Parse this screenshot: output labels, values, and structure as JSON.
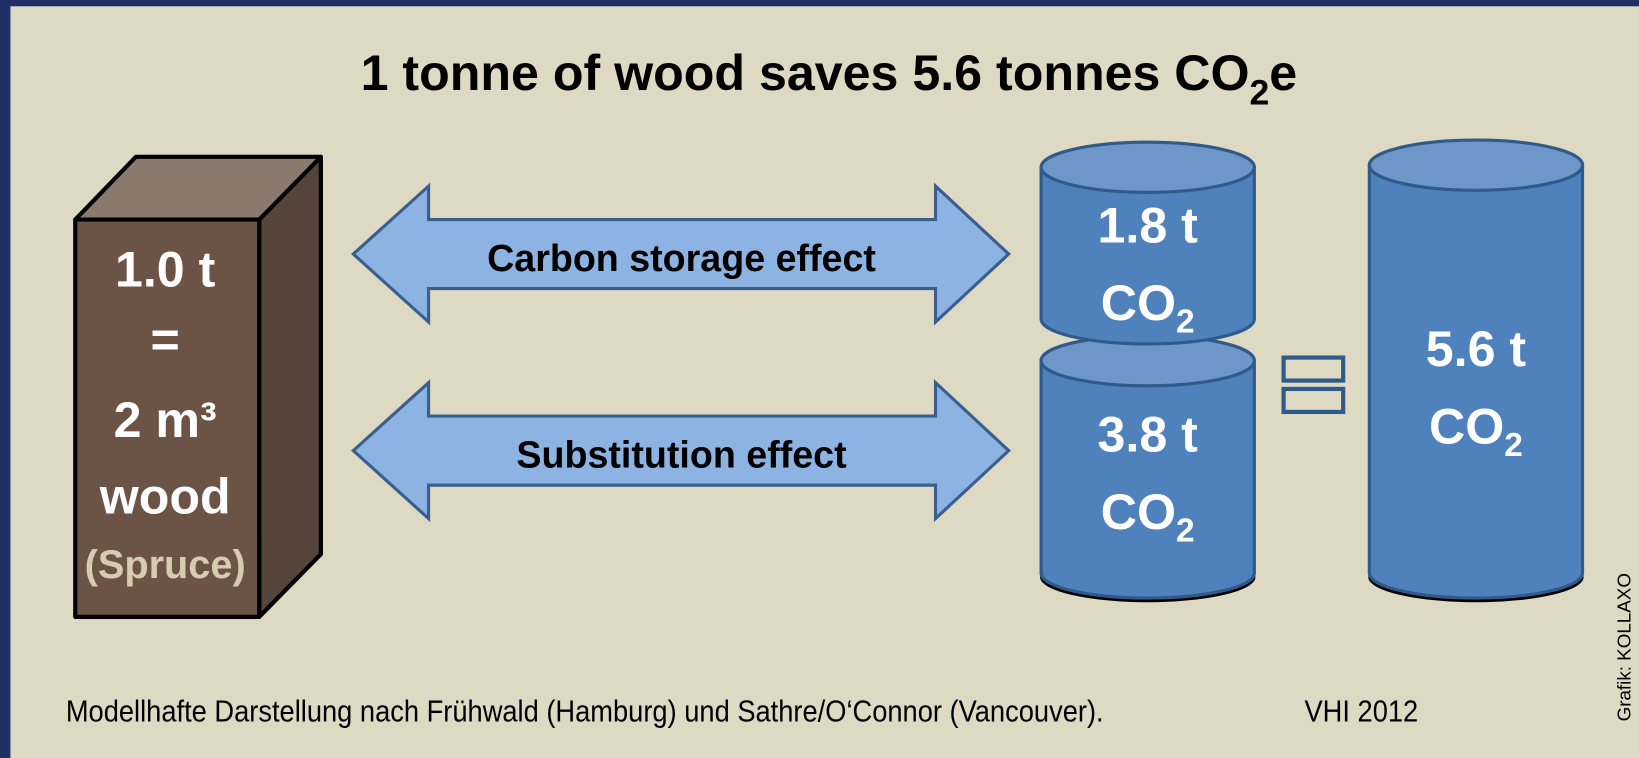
{
  "title": {
    "text": "1 tonne of wood saves 5.6 tonnes CO",
    "subscript": "2",
    "suffix": "e"
  },
  "wood_block": {
    "lines": [
      "1.0 t",
      "=",
      "2 m³",
      "wood"
    ],
    "species": "(Spruce)"
  },
  "arrows": [
    {
      "label": "Carbon storage effect"
    },
    {
      "label": "Substitution effect"
    }
  ],
  "cylinders": [
    {
      "amount": "1.8 t",
      "unit": "CO",
      "subscript": "2"
    },
    {
      "amount": "3.8 t",
      "unit": "CO",
      "subscript": "2"
    },
    {
      "amount": "5.6 t",
      "unit": "CO",
      "subscript": "2"
    }
  ],
  "footer": {
    "source": "Modellhafte Darstellung nach Frühwald (Hamburg) und Sathre/O‘Connor (Vancouver).",
    "publisher": "VHI 2012"
  },
  "credit": "Grafik: KOLLAXO"
}
